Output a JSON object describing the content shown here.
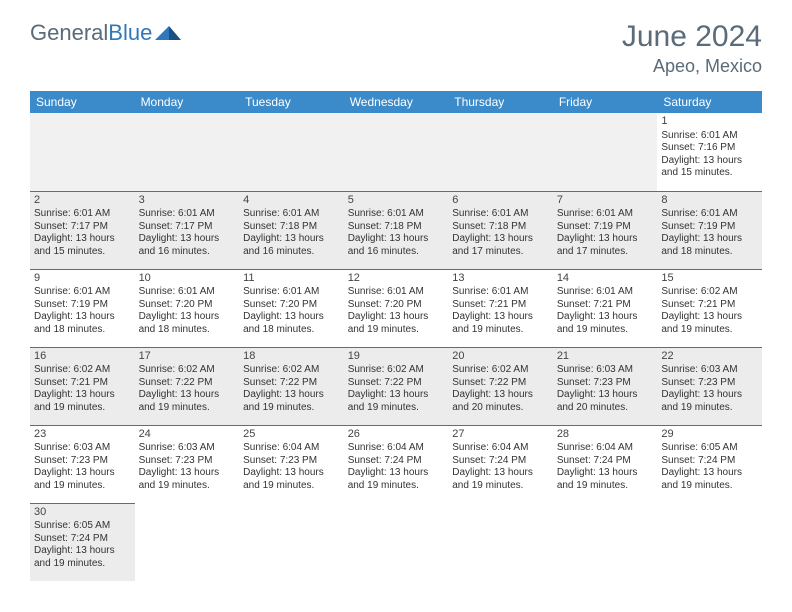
{
  "logo": {
    "text1": "General",
    "text2": "Blue"
  },
  "title": "June 2024",
  "location": "Apeo, Mexico",
  "colors": {
    "header_bg": "#3b8bca",
    "border": "#2f78bd",
    "shaded": "#ececec",
    "empty_bg": "#f1f1f1",
    "text_muted": "#5a6b7a"
  },
  "day_headers": [
    "Sunday",
    "Monday",
    "Tuesday",
    "Wednesday",
    "Thursday",
    "Friday",
    "Saturday"
  ],
  "weeks": [
    [
      {
        "empty": true
      },
      {
        "empty": true
      },
      {
        "empty": true
      },
      {
        "empty": true
      },
      {
        "empty": true
      },
      {
        "empty": true
      },
      {
        "day": "1",
        "sunrise": "Sunrise: 6:01 AM",
        "sunset": "Sunset: 7:16 PM",
        "daylight1": "Daylight: 13 hours",
        "daylight2": "and 15 minutes."
      }
    ],
    [
      {
        "day": "2",
        "sunrise": "Sunrise: 6:01 AM",
        "sunset": "Sunset: 7:17 PM",
        "daylight1": "Daylight: 13 hours",
        "daylight2": "and 15 minutes.",
        "shaded": true
      },
      {
        "day": "3",
        "sunrise": "Sunrise: 6:01 AM",
        "sunset": "Sunset: 7:17 PM",
        "daylight1": "Daylight: 13 hours",
        "daylight2": "and 16 minutes.",
        "shaded": true
      },
      {
        "day": "4",
        "sunrise": "Sunrise: 6:01 AM",
        "sunset": "Sunset: 7:18 PM",
        "daylight1": "Daylight: 13 hours",
        "daylight2": "and 16 minutes.",
        "shaded": true
      },
      {
        "day": "5",
        "sunrise": "Sunrise: 6:01 AM",
        "sunset": "Sunset: 7:18 PM",
        "daylight1": "Daylight: 13 hours",
        "daylight2": "and 16 minutes.",
        "shaded": true
      },
      {
        "day": "6",
        "sunrise": "Sunrise: 6:01 AM",
        "sunset": "Sunset: 7:18 PM",
        "daylight1": "Daylight: 13 hours",
        "daylight2": "and 17 minutes.",
        "shaded": true
      },
      {
        "day": "7",
        "sunrise": "Sunrise: 6:01 AM",
        "sunset": "Sunset: 7:19 PM",
        "daylight1": "Daylight: 13 hours",
        "daylight2": "and 17 minutes.",
        "shaded": true
      },
      {
        "day": "8",
        "sunrise": "Sunrise: 6:01 AM",
        "sunset": "Sunset: 7:19 PM",
        "daylight1": "Daylight: 13 hours",
        "daylight2": "and 18 minutes.",
        "shaded": true
      }
    ],
    [
      {
        "day": "9",
        "sunrise": "Sunrise: 6:01 AM",
        "sunset": "Sunset: 7:19 PM",
        "daylight1": "Daylight: 13 hours",
        "daylight2": "and 18 minutes."
      },
      {
        "day": "10",
        "sunrise": "Sunrise: 6:01 AM",
        "sunset": "Sunset: 7:20 PM",
        "daylight1": "Daylight: 13 hours",
        "daylight2": "and 18 minutes."
      },
      {
        "day": "11",
        "sunrise": "Sunrise: 6:01 AM",
        "sunset": "Sunset: 7:20 PM",
        "daylight1": "Daylight: 13 hours",
        "daylight2": "and 18 minutes."
      },
      {
        "day": "12",
        "sunrise": "Sunrise: 6:01 AM",
        "sunset": "Sunset: 7:20 PM",
        "daylight1": "Daylight: 13 hours",
        "daylight2": "and 19 minutes."
      },
      {
        "day": "13",
        "sunrise": "Sunrise: 6:01 AM",
        "sunset": "Sunset: 7:21 PM",
        "daylight1": "Daylight: 13 hours",
        "daylight2": "and 19 minutes."
      },
      {
        "day": "14",
        "sunrise": "Sunrise: 6:01 AM",
        "sunset": "Sunset: 7:21 PM",
        "daylight1": "Daylight: 13 hours",
        "daylight2": "and 19 minutes."
      },
      {
        "day": "15",
        "sunrise": "Sunrise: 6:02 AM",
        "sunset": "Sunset: 7:21 PM",
        "daylight1": "Daylight: 13 hours",
        "daylight2": "and 19 minutes."
      }
    ],
    [
      {
        "day": "16",
        "sunrise": "Sunrise: 6:02 AM",
        "sunset": "Sunset: 7:21 PM",
        "daylight1": "Daylight: 13 hours",
        "daylight2": "and 19 minutes.",
        "shaded": true
      },
      {
        "day": "17",
        "sunrise": "Sunrise: 6:02 AM",
        "sunset": "Sunset: 7:22 PM",
        "daylight1": "Daylight: 13 hours",
        "daylight2": "and 19 minutes.",
        "shaded": true
      },
      {
        "day": "18",
        "sunrise": "Sunrise: 6:02 AM",
        "sunset": "Sunset: 7:22 PM",
        "daylight1": "Daylight: 13 hours",
        "daylight2": "and 19 minutes.",
        "shaded": true
      },
      {
        "day": "19",
        "sunrise": "Sunrise: 6:02 AM",
        "sunset": "Sunset: 7:22 PM",
        "daylight1": "Daylight: 13 hours",
        "daylight2": "and 19 minutes.",
        "shaded": true
      },
      {
        "day": "20",
        "sunrise": "Sunrise: 6:02 AM",
        "sunset": "Sunset: 7:22 PM",
        "daylight1": "Daylight: 13 hours",
        "daylight2": "and 20 minutes.",
        "shaded": true
      },
      {
        "day": "21",
        "sunrise": "Sunrise: 6:03 AM",
        "sunset": "Sunset: 7:23 PM",
        "daylight1": "Daylight: 13 hours",
        "daylight2": "and 20 minutes.",
        "shaded": true
      },
      {
        "day": "22",
        "sunrise": "Sunrise: 6:03 AM",
        "sunset": "Sunset: 7:23 PM",
        "daylight1": "Daylight: 13 hours",
        "daylight2": "and 19 minutes.",
        "shaded": true
      }
    ],
    [
      {
        "day": "23",
        "sunrise": "Sunrise: 6:03 AM",
        "sunset": "Sunset: 7:23 PM",
        "daylight1": "Daylight: 13 hours",
        "daylight2": "and 19 minutes."
      },
      {
        "day": "24",
        "sunrise": "Sunrise: 6:03 AM",
        "sunset": "Sunset: 7:23 PM",
        "daylight1": "Daylight: 13 hours",
        "daylight2": "and 19 minutes."
      },
      {
        "day": "25",
        "sunrise": "Sunrise: 6:04 AM",
        "sunset": "Sunset: 7:23 PM",
        "daylight1": "Daylight: 13 hours",
        "daylight2": "and 19 minutes."
      },
      {
        "day": "26",
        "sunrise": "Sunrise: 6:04 AM",
        "sunset": "Sunset: 7:24 PM",
        "daylight1": "Daylight: 13 hours",
        "daylight2": "and 19 minutes."
      },
      {
        "day": "27",
        "sunrise": "Sunrise: 6:04 AM",
        "sunset": "Sunset: 7:24 PM",
        "daylight1": "Daylight: 13 hours",
        "daylight2": "and 19 minutes."
      },
      {
        "day": "28",
        "sunrise": "Sunrise: 6:04 AM",
        "sunset": "Sunset: 7:24 PM",
        "daylight1": "Daylight: 13 hours",
        "daylight2": "and 19 minutes."
      },
      {
        "day": "29",
        "sunrise": "Sunrise: 6:05 AM",
        "sunset": "Sunset: 7:24 PM",
        "daylight1": "Daylight: 13 hours",
        "daylight2": "and 19 minutes."
      }
    ],
    [
      {
        "day": "30",
        "sunrise": "Sunrise: 6:05 AM",
        "sunset": "Sunset: 7:24 PM",
        "daylight1": "Daylight: 13 hours",
        "daylight2": "and 19 minutes.",
        "shaded": true
      },
      {
        "trailing": true
      },
      {
        "trailing": true
      },
      {
        "trailing": true
      },
      {
        "trailing": true
      },
      {
        "trailing": true
      },
      {
        "trailing": true
      }
    ]
  ]
}
